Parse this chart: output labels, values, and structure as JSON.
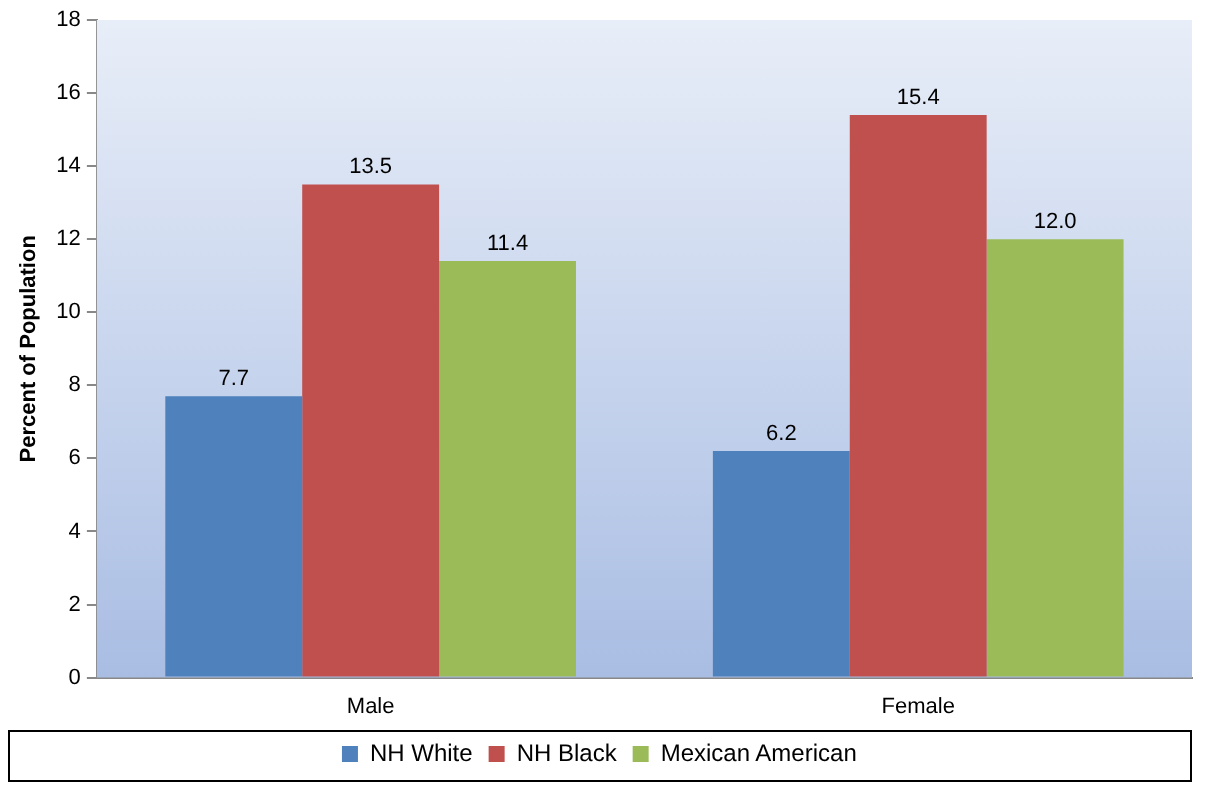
{
  "chart_data": {
    "type": "bar",
    "ylabel": "Percent of Population",
    "categories": [
      "Male",
      "Female"
    ],
    "series": [
      {
        "name": "NH White",
        "color": "#4f81bd",
        "values": [
          7.7,
          6.2
        ],
        "value_labels": [
          "7.7",
          "6.2"
        ]
      },
      {
        "name": "NH Black",
        "color": "#c0504d",
        "values": [
          13.5,
          15.4
        ],
        "value_labels": [
          "13.5",
          "15.4"
        ]
      },
      {
        "name": "Mexican American",
        "color": "#9bbb59",
        "values": [
          11.4,
          12.0
        ],
        "value_labels": [
          "11.4",
          "12.0"
        ]
      }
    ],
    "ylim": [
      0,
      18
    ],
    "yticks": [
      0,
      2,
      4,
      6,
      8,
      10,
      12,
      14,
      16,
      18
    ],
    "grid": false,
    "legend": "bottom"
  }
}
